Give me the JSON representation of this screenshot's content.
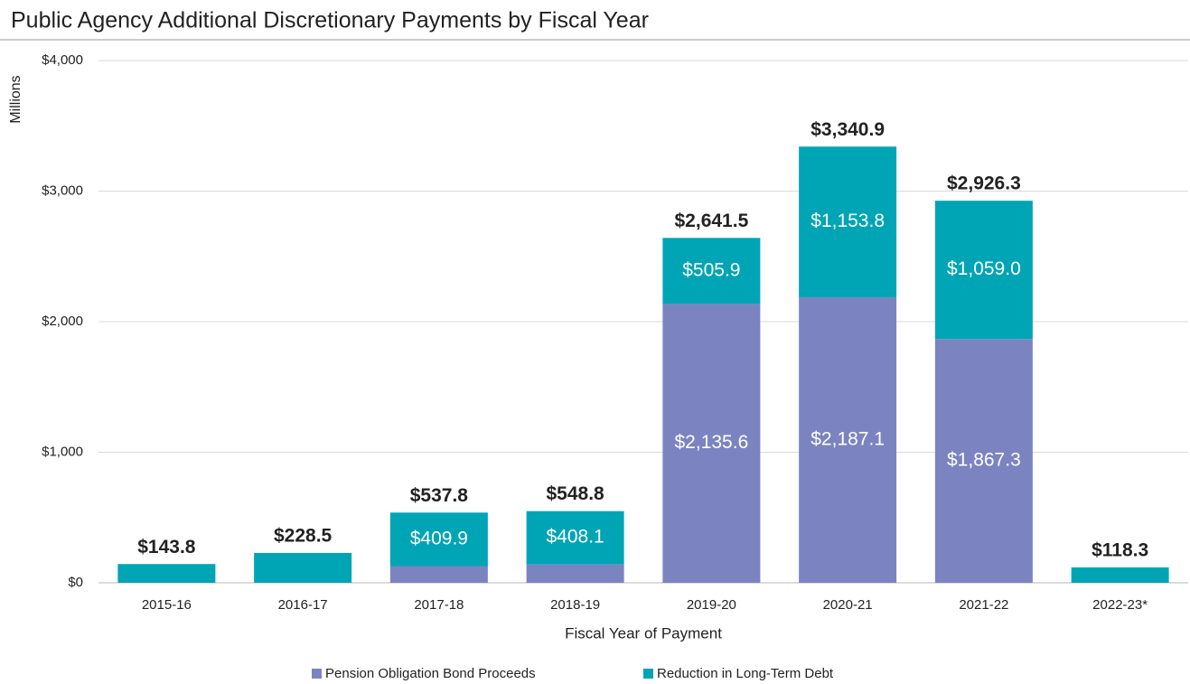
{
  "chart_data": {
    "type": "stacked_bar",
    "title": "Public Agency Additional Discretionary Payments by Fiscal Year",
    "y_label": "Millions",
    "x_label": "Fiscal Year of Payment",
    "categories": [
      "2015-16",
      "2016-17",
      "2017-18",
      "2018-19",
      "2019-20",
      "2020-21",
      "2021-22",
      "2022-23*"
    ],
    "series": [
      {
        "name": "Pension Obligation Bond Proceeds",
        "color": "#7b84c1",
        "values": [
          0,
          0,
          127.9,
          140.7,
          2135.6,
          2187.1,
          1867.3,
          0
        ],
        "value_labels": [
          null,
          null,
          null,
          null,
          "$2,135.6",
          "$2,187.1",
          "$1,867.3",
          null
        ]
      },
      {
        "name": "Reduction in Long-Term Debt",
        "color": "#00a5b5",
        "values": [
          143.8,
          228.5,
          409.9,
          408.1,
          505.9,
          1153.8,
          1059.0,
          118.3
        ],
        "value_labels": [
          null,
          null,
          "$409.9",
          "$408.1",
          "$505.9",
          "$1,153.8",
          "$1,059.0",
          null
        ]
      }
    ],
    "totals": [
      143.8,
      228.5,
      537.8,
      548.8,
      2641.5,
      3340.9,
      2926.3,
      118.3
    ],
    "total_labels": [
      "$143.8",
      "$228.5",
      "$537.8",
      "$548.8",
      "$2,641.5",
      "$3,340.9",
      "$2,926.3",
      "$118.3"
    ],
    "ylim": [
      0,
      4000
    ],
    "yticks": [
      {
        "value": 0,
        "label": "$0"
      },
      {
        "value": 1000,
        "label": "$1,000"
      },
      {
        "value": 2000,
        "label": "$2,000"
      },
      {
        "value": 3000,
        "label": "$3,000"
      },
      {
        "value": 4000,
        "label": "$4,000"
      }
    ],
    "grid": true,
    "legend": "bottom"
  }
}
